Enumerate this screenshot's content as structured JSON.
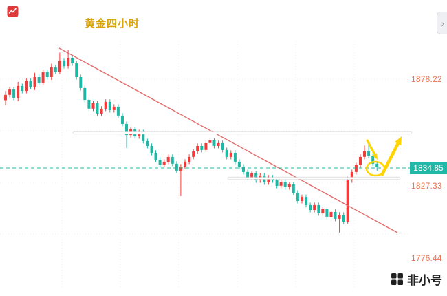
{
  "header": {
    "title": "黄金四小时",
    "panel_toggle_glyph": "›"
  },
  "axis": {
    "labels": [
      {
        "text": "1878.22"
      },
      {
        "text": "1827.33"
      },
      {
        "text": "1776.44"
      }
    ],
    "current_price": "1834.85"
  },
  "watermark": {
    "text": "非小号"
  },
  "chart_data": {
    "type": "candlestick",
    "title": "黄金四小时",
    "current_price": 1834.85,
    "y_axis_marks": [
      1878.22,
      1834.85,
      1827.33,
      1776.44
    ],
    "y_range_approx": [
      1776,
      1894
    ],
    "grid": "faint",
    "legend": "none",
    "colors": {
      "up": "#f23c3c",
      "down": "#1eb8a5",
      "trendline": "#e26a6a",
      "sr_line": "#ffffff",
      "forecast": "#ffd400",
      "price_badge": "#20b8a6",
      "axis_label": "#ee7350",
      "title": "#d9a40b"
    },
    "annotations": {
      "trendline": {
        "direction": "descending",
        "from_price": 1893.0,
        "to_price": 1802.5
      },
      "resistance_line_price": 1851.9,
      "support_line_price": 1829.1,
      "current_price_line": {
        "price": 1834.85,
        "style": "dashed"
      },
      "forecast_arrows": "small yellow arrow down into circled candles, large yellow arrow up (dip then rally)"
    },
    "candles": [
      [
        1868.0,
        1872.5,
        1865.5,
        1870.6
      ],
      [
        1870.6,
        1874.5,
        1869.4,
        1873.3
      ],
      [
        1873.3,
        1874.5,
        1868.0,
        1869.2
      ],
      [
        1869.2,
        1877.0,
        1867.5,
        1875.0
      ],
      [
        1875.0,
        1876.2,
        1871.4,
        1872.6
      ],
      [
        1872.6,
        1878.6,
        1871.4,
        1877.4
      ],
      [
        1877.4,
        1878.6,
        1873.4,
        1874.6
      ],
      [
        1874.6,
        1881.5,
        1873.0,
        1879.4
      ],
      [
        1879.4,
        1880.6,
        1875.5,
        1876.7
      ],
      [
        1876.7,
        1883.0,
        1875.5,
        1881.8
      ],
      [
        1881.8,
        1883.0,
        1878.2,
        1879.4
      ],
      [
        1879.4,
        1886.0,
        1878.0,
        1884.2
      ],
      [
        1884.2,
        1885.4,
        1880.9,
        1882.1
      ],
      [
        1882.1,
        1891.5,
        1880.9,
        1887.6
      ],
      [
        1887.6,
        1888.8,
        1883.6,
        1884.8
      ],
      [
        1884.8,
        1893.0,
        1883.6,
        1888.9
      ],
      [
        1888.9,
        1890.2,
        1885.0,
        1886.2
      ],
      [
        1886.2,
        1887.4,
        1878.2,
        1879.4
      ],
      [
        1879.4,
        1880.6,
        1872.8,
        1874.0
      ],
      [
        1874.0,
        1875.2,
        1867.0,
        1868.2
      ],
      [
        1868.2,
        1869.4,
        1862.6,
        1863.8
      ],
      [
        1863.8,
        1867.7,
        1862.6,
        1866.5
      ],
      [
        1866.5,
        1867.7,
        1860.2,
        1861.4
      ],
      [
        1861.4,
        1865.0,
        1860.2,
        1863.8
      ],
      [
        1863.8,
        1868.4,
        1862.6,
        1867.2
      ],
      [
        1867.2,
        1868.4,
        1861.9,
        1863.1
      ],
      [
        1863.1,
        1866.0,
        1861.9,
        1864.8
      ],
      [
        1864.8,
        1866.0,
        1859.2,
        1860.4
      ],
      [
        1860.4,
        1861.6,
        1855.1,
        1856.3
      ],
      [
        1856.3,
        1857.5,
        1844.4,
        1850.8
      ],
      [
        1850.8,
        1854.8,
        1849.6,
        1853.6
      ],
      [
        1853.6,
        1854.8,
        1849.0,
        1850.2
      ],
      [
        1850.2,
        1853.4,
        1849.0,
        1852.2
      ],
      [
        1852.2,
        1853.4,
        1846.6,
        1847.8
      ],
      [
        1847.8,
        1849.0,
        1844.2,
        1845.4
      ],
      [
        1845.4,
        1846.6,
        1840.8,
        1842.0
      ],
      [
        1842.0,
        1843.2,
        1837.4,
        1838.6
      ],
      [
        1838.6,
        1839.8,
        1834.7,
        1835.9
      ],
      [
        1835.9,
        1838.8,
        1834.7,
        1837.6
      ],
      [
        1837.6,
        1841.2,
        1836.4,
        1840.0
      ],
      [
        1840.0,
        1841.2,
        1835.4,
        1836.6
      ],
      [
        1836.6,
        1837.8,
        1832.0,
        1833.2
      ],
      [
        1833.2,
        1836.4,
        1820.6,
        1835.2
      ],
      [
        1835.2,
        1838.8,
        1834.0,
        1837.6
      ],
      [
        1837.6,
        1841.2,
        1836.4,
        1840.0
      ],
      [
        1840.0,
        1843.9,
        1838.8,
        1842.7
      ],
      [
        1842.7,
        1846.6,
        1841.5,
        1845.4
      ],
      [
        1845.4,
        1846.6,
        1842.2,
        1843.4
      ],
      [
        1843.4,
        1848.0,
        1842.2,
        1846.8
      ],
      [
        1846.8,
        1849.3,
        1845.6,
        1848.1
      ],
      [
        1848.1,
        1849.3,
        1844.2,
        1845.4
      ],
      [
        1845.4,
        1848.0,
        1844.2,
        1846.8
      ],
      [
        1846.8,
        1848.0,
        1842.2,
        1843.4
      ],
      [
        1843.4,
        1844.6,
        1838.8,
        1840.0
      ],
      [
        1840.0,
        1843.2,
        1838.8,
        1842.0
      ],
      [
        1842.0,
        1843.2,
        1836.4,
        1837.6
      ],
      [
        1837.6,
        1838.8,
        1834.0,
        1835.2
      ],
      [
        1835.2,
        1836.4,
        1831.3,
        1832.5
      ],
      [
        1832.5,
        1833.7,
        1828.6,
        1829.8
      ],
      [
        1829.8,
        1833.0,
        1828.6,
        1831.8
      ],
      [
        1831.8,
        1833.0,
        1827.2,
        1828.4
      ],
      [
        1828.4,
        1832.0,
        1827.2,
        1830.8
      ],
      [
        1830.8,
        1832.0,
        1826.2,
        1827.4
      ],
      [
        1827.4,
        1831.0,
        1826.2,
        1829.8
      ],
      [
        1829.8,
        1831.0,
        1827.2,
        1828.4
      ],
      [
        1828.4,
        1829.6,
        1824.5,
        1825.7
      ],
      [
        1825.7,
        1828.9,
        1824.5,
        1827.7
      ],
      [
        1827.7,
        1828.9,
        1823.8,
        1825.0
      ],
      [
        1825.0,
        1827.6,
        1823.8,
        1826.4
      ],
      [
        1826.4,
        1827.6,
        1821.1,
        1822.3
      ],
      [
        1822.3,
        1823.5,
        1817.0,
        1818.2
      ],
      [
        1818.2,
        1821.4,
        1817.0,
        1820.2
      ],
      [
        1820.2,
        1821.4,
        1815.0,
        1816.2
      ],
      [
        1816.2,
        1817.4,
        1812.6,
        1813.8
      ],
      [
        1813.8,
        1817.4,
        1812.6,
        1816.2
      ],
      [
        1816.2,
        1817.4,
        1810.9,
        1812.1
      ],
      [
        1812.1,
        1815.3,
        1810.9,
        1814.1
      ],
      [
        1814.1,
        1815.3,
        1809.2,
        1810.4
      ],
      [
        1810.4,
        1814.0,
        1809.2,
        1812.8
      ],
      [
        1812.8,
        1814.0,
        1808.2,
        1809.4
      ],
      [
        1809.4,
        1812.6,
        1802.6,
        1811.4
      ],
      [
        1811.4,
        1812.6,
        1806.8,
        1808.0
      ],
      [
        1808.0,
        1830.2,
        1806.8,
        1828.4
      ],
      [
        1828.4,
        1833.7,
        1827.2,
        1832.5
      ],
      [
        1832.5,
        1837.1,
        1831.3,
        1835.9
      ],
      [
        1835.9,
        1841.2,
        1834.7,
        1840.0
      ],
      [
        1840.0,
        1845.6,
        1838.8,
        1842.7
      ],
      [
        1842.7,
        1846.1,
        1839.4,
        1840.6
      ],
      [
        1840.6,
        1841.8,
        1835.4,
        1836.6
      ],
      [
        1836.6,
        1837.8,
        1833.2,
        1834.85
      ]
    ]
  }
}
